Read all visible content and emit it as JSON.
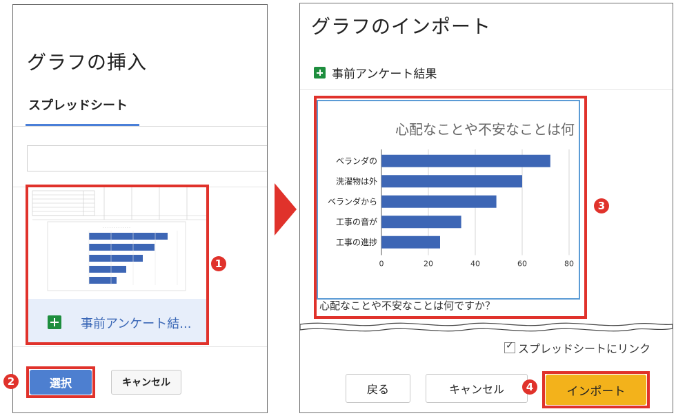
{
  "left_dialog": {
    "title": "グラフの挿入",
    "tab_label": "スプレッドシート",
    "search_placeholder": "",
    "file_name": "事前アンケート結...",
    "select_button": "選択",
    "cancel_button": "キャンセル"
  },
  "right_dialog": {
    "title": "グラフのインポート",
    "spreadsheet_name": "事前アンケート結果",
    "link_checkbox_label": "スプレッドシートにリンク",
    "link_checked": true,
    "back_button": "戻る",
    "cancel_button": "キャンセル",
    "import_button": "インポート"
  },
  "steps": [
    "1",
    "2",
    "3",
    "4"
  ],
  "colors": {
    "accent_red": "#e0322b",
    "bar_blue": "#3d66b5",
    "import_yellow": "#f3b21b",
    "select_blue": "#4d7fd0"
  },
  "chart_data": {
    "type": "bar",
    "orientation": "horizontal",
    "title": "心配なことや不安なことは何",
    "caption": "心配なことや不安なことは何ですか？",
    "categories": [
      "ベランダの",
      "洗濯物は外",
      "ベランダから",
      "工事の音が",
      "工事の進捗"
    ],
    "values": [
      72,
      60,
      49,
      34,
      25
    ],
    "xlim": [
      0,
      80
    ],
    "xticks": [
      0,
      20,
      40,
      60,
      80
    ],
    "grid": true
  }
}
